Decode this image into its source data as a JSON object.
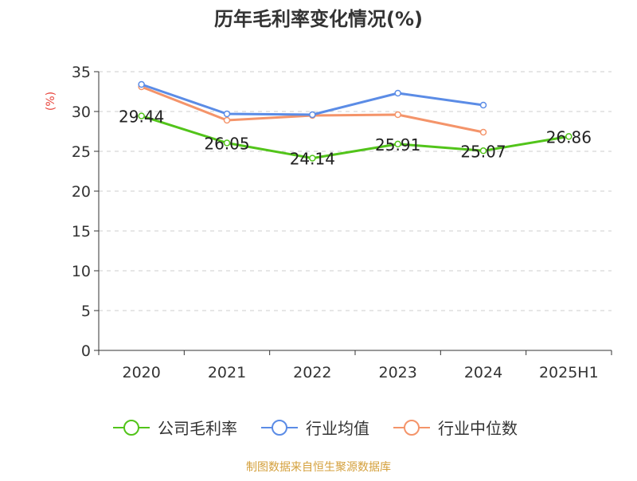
{
  "chart_data": {
    "type": "line",
    "title": "历年毛利率变化情况(%)",
    "ylabel": "(%)",
    "xlabel": "",
    "categories": [
      "2020",
      "2021",
      "2022",
      "2023",
      "2024",
      "2025H1"
    ],
    "ylim": [
      0,
      35
    ],
    "yticks": [
      0,
      5,
      10,
      15,
      20,
      25,
      30,
      35
    ],
    "grid": true,
    "legend_position": "bottom",
    "series": [
      {
        "name": "公司毛利率",
        "color": "#52c41a",
        "values": [
          29.44,
          26.05,
          24.14,
          25.91,
          25.07,
          26.86
        ],
        "labels": [
          "29.44",
          "26.05",
          "24.14",
          "25.91",
          "25.07",
          "26.86"
        ]
      },
      {
        "name": "行业均值",
        "color": "#5b8ce6",
        "values": [
          33.4,
          29.7,
          29.6,
          32.3,
          30.8,
          null
        ]
      },
      {
        "name": "行业中位数",
        "color": "#f4946a",
        "values": [
          33.1,
          28.9,
          29.5,
          29.6,
          27.4,
          null
        ]
      }
    ]
  },
  "footer": {
    "source": "制图数据来自恒生聚源数据库",
    "color": "#d4a03c"
  }
}
